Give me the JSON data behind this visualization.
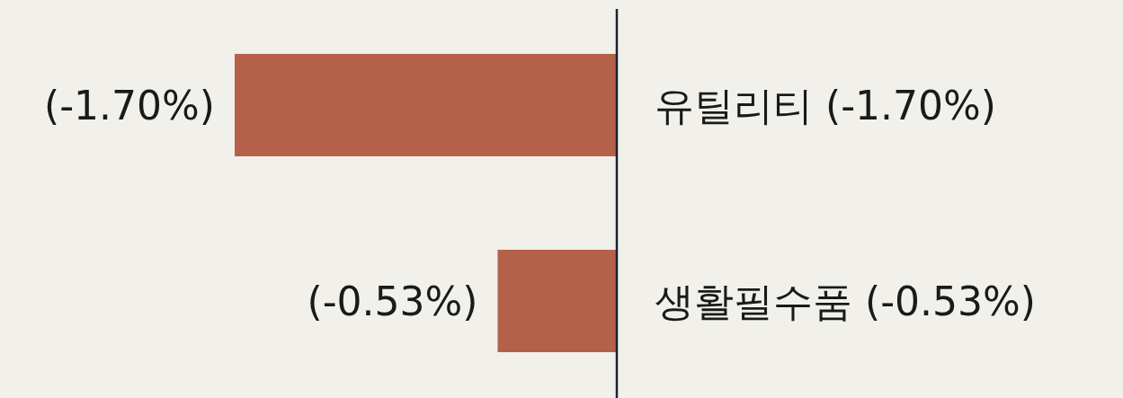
{
  "chart_data": {
    "type": "bar",
    "orientation": "horizontal",
    "categories": [
      "유틸리티 (-1.70%)",
      "생활필수품 (-0.53%)"
    ],
    "values": [
      -1.7,
      -0.53
    ],
    "value_labels": [
      "(-1.70%)",
      "(-0.53%)"
    ],
    "color": "#b5614a"
  }
}
